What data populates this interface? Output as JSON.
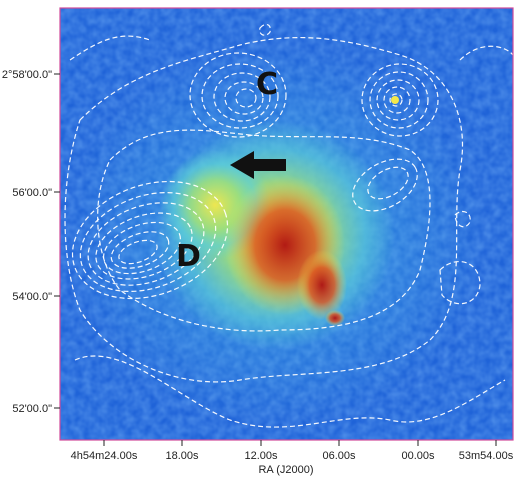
{
  "image": {
    "description_domain": "astronomical sky map",
    "colors": {
      "background_field": "#1f63d8",
      "mid_emission": "#5fd2d6",
      "bright_emission": "#f4e84b",
      "peak_emission": "#b01010",
      "contours": "#ffffff",
      "frame": "#d04a9a"
    }
  },
  "axes": {
    "x_title": "RA (J2000)",
    "x_ticks": [
      "4h54m24.00s",
      "18.00s",
      "12.00s",
      "06.00s",
      "00.00s",
      "53m54.00s"
    ],
    "y_ticks": [
      "2°58'00.0\"",
      "56'00.0\"",
      "54'00.0\"",
      "52'00.0\""
    ]
  },
  "annotations": {
    "label_c": "C",
    "label_d": "D",
    "arrow": "left-pointing-arrow"
  }
}
